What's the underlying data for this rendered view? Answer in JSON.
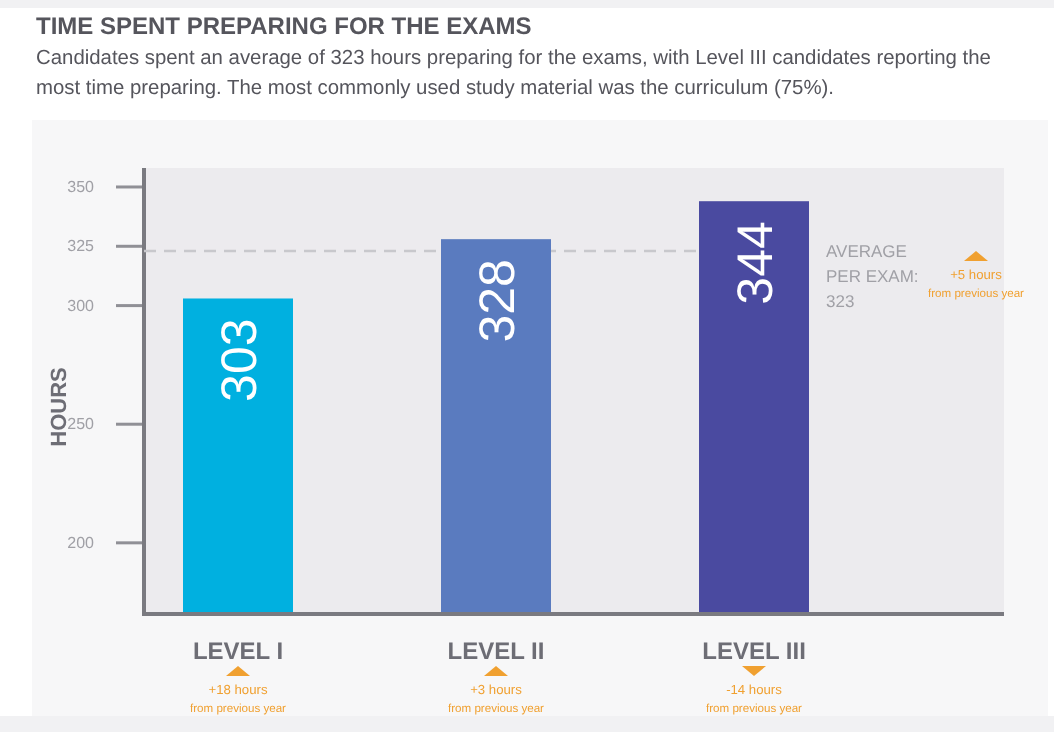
{
  "chart_data": {
    "type": "bar",
    "title": "TIME SPENT PREPARING FOR THE EXAMS",
    "subtitle": "Candidates spent an average of 323 hours preparing for the exams, with Level III candidates reporting the most time preparing. The most commonly used study material was the curriculum (75%).",
    "ylabel": "HOURS",
    "categories": [
      "LEVEL I",
      "LEVEL II",
      "LEVEL III"
    ],
    "values": [
      303,
      328,
      344
    ],
    "colors": [
      "#00b0e0",
      "#5a7bbf",
      "#4a4aa0"
    ],
    "data_labels": true,
    "ylim": [
      170,
      358
    ],
    "yticks": [
      200,
      250,
      300,
      325,
      350
    ],
    "ref_lines": [
      {
        "axis": "y",
        "value": 323,
        "label": "AVERAGE\nPER EXAM:\n323",
        "color": "#c8c8cc",
        "line_style": "dashed"
      }
    ],
    "annotations": [
      "+18 hours\nfrom previous year",
      "+3 hours\nfrom previous year",
      "-14 hours\nfrom previous year",
      "+5 hours\nfrom previous year"
    ]
  }
}
